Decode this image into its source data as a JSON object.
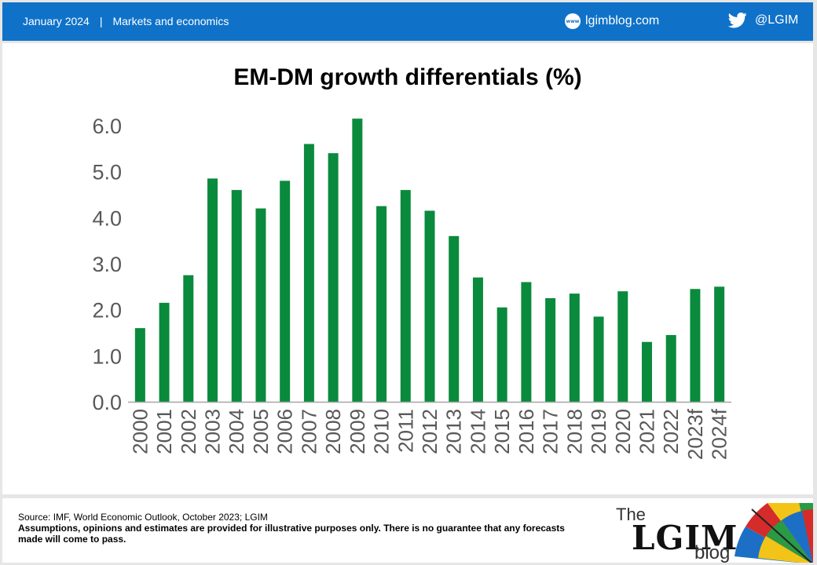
{
  "header": {
    "date": "January 2024",
    "separator": "|",
    "category": "Markets and economics",
    "www_badge": "www",
    "blog_url": "lgimblog.com",
    "twitter_handle": "@LGIM"
  },
  "chart_data": {
    "type": "bar",
    "title": "EM-DM growth differentials (%)",
    "xlabel": "",
    "ylabel": "",
    "categories": [
      "2000",
      "2001",
      "2002",
      "2003",
      "2004",
      "2005",
      "2006",
      "2007",
      "2008",
      "2009",
      "2010",
      "2011",
      "2012",
      "2013",
      "2014",
      "2015",
      "2016",
      "2017",
      "2018",
      "2019",
      "2020",
      "2021",
      "2022",
      "2023f",
      "2024f"
    ],
    "values": [
      1.6,
      2.15,
      2.75,
      4.85,
      4.6,
      4.2,
      4.8,
      5.6,
      5.4,
      6.15,
      4.25,
      4.6,
      4.15,
      3.6,
      2.7,
      2.05,
      2.6,
      2.25,
      2.35,
      1.85,
      2.4,
      1.3,
      1.45,
      2.45,
      2.5
    ],
    "ylim": [
      0,
      6
    ],
    "yticks": [
      "0.0",
      "1.0",
      "2.0",
      "3.0",
      "4.0",
      "5.0",
      "6.0"
    ],
    "grid": false,
    "bar_color": "#0a8a3c",
    "axis_color": "#a6a6a6",
    "tick_label_color": "#595959"
  },
  "footer": {
    "source": "Source: IMF, World Economic Outlook, October 2023; LGIM",
    "disclaimer": "Assumptions,  opinions and estimates are provided for illustrative purposes  only. There is no guarantee that any forecasts  made will come to pass.",
    "logo_the": "The",
    "logo_lgim": "LGIM",
    "logo_blog": "blog"
  }
}
